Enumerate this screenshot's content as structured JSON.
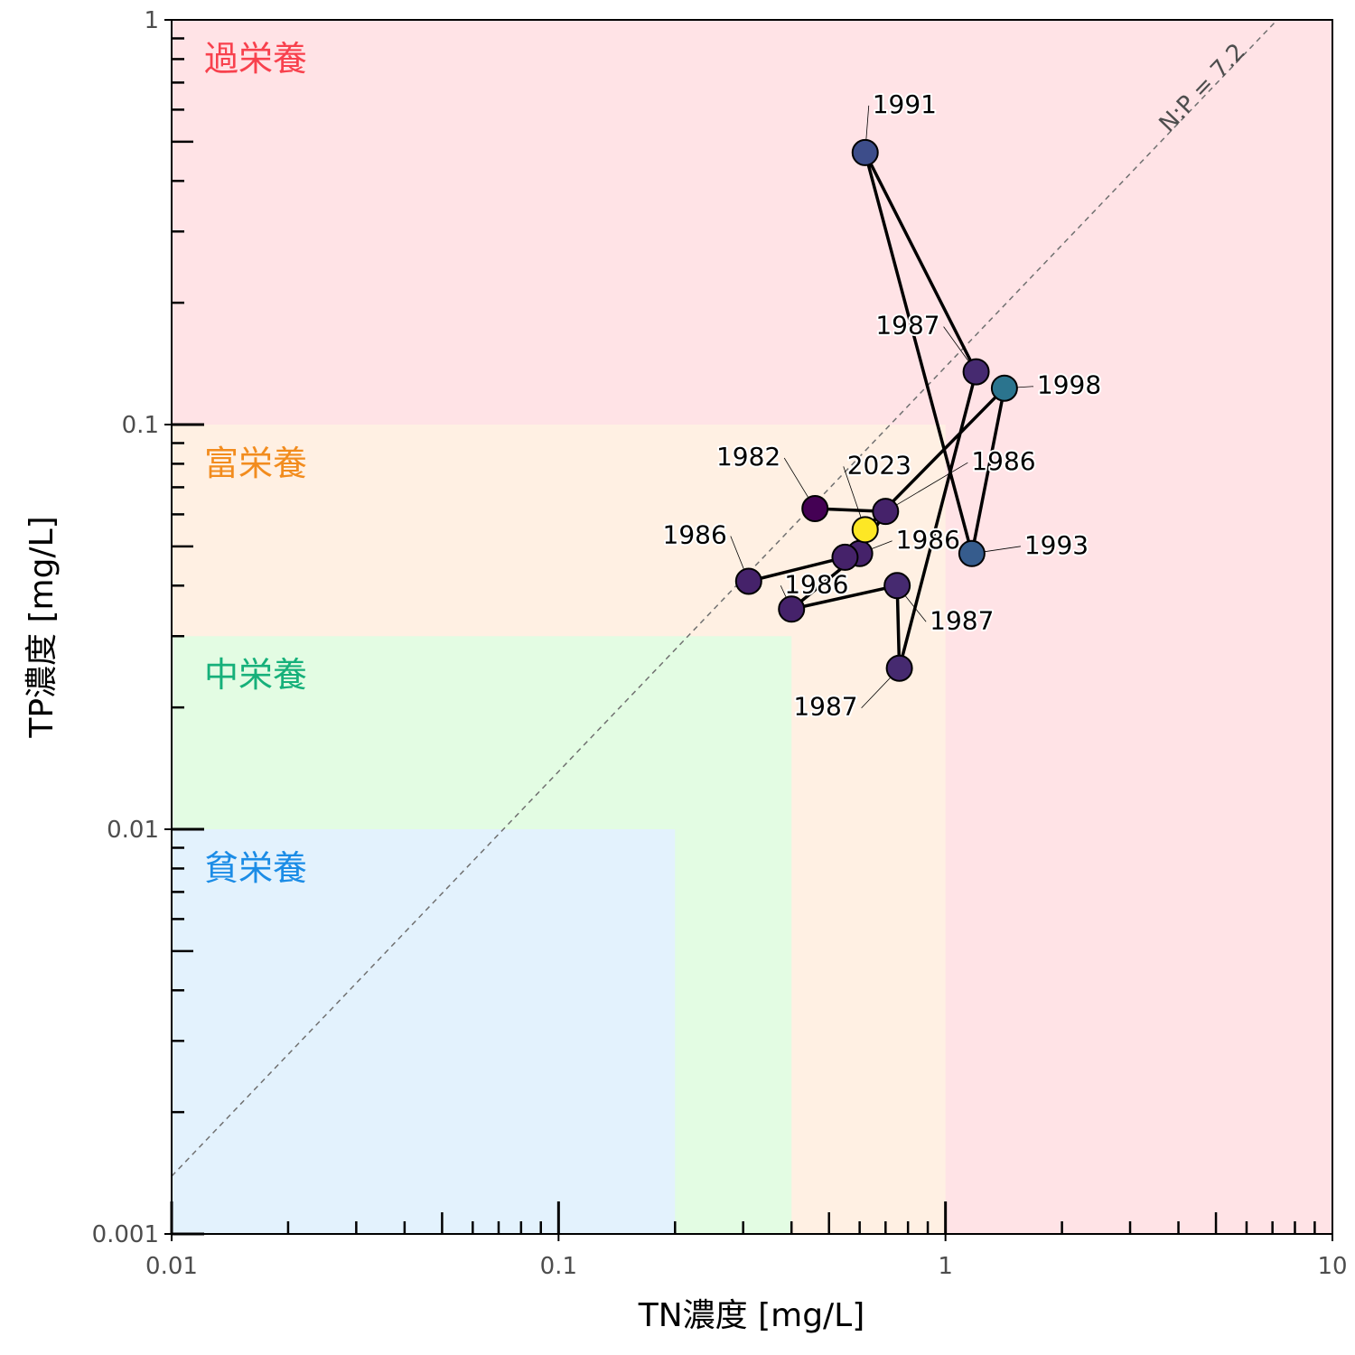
{
  "chart_data": {
    "type": "scatter",
    "xlabel": "TN濃度 [mg/L]",
    "ylabel": "TP濃度 [mg/L]",
    "x_scale": "log",
    "y_scale": "log",
    "xlim": [
      0.01,
      10
    ],
    "ylim": [
      0.001,
      1
    ],
    "x_ticks": [
      {
        "value": 0.01,
        "label": "0.01"
      },
      {
        "value": 0.1,
        "label": "0.1"
      },
      {
        "value": 1,
        "label": "1"
      },
      {
        "value": 10,
        "label": "10"
      }
    ],
    "y_ticks": [
      {
        "value": 0.001,
        "label": "0.001"
      },
      {
        "value": 0.01,
        "label": "0.01"
      },
      {
        "value": 0.1,
        "label": "0.1"
      },
      {
        "value": 1,
        "label": "1"
      }
    ],
    "grid": false,
    "zones": [
      {
        "label": "過栄養",
        "x_max": 10,
        "y_max": 1,
        "color": "#ffe3e6",
        "text_color": "#f8414d"
      },
      {
        "label": "富栄養",
        "x_max": 1,
        "y_max": 0.1,
        "color": "#fff0e3",
        "text_color": "#f28c1e"
      },
      {
        "label": "中栄養",
        "x_max": 0.4,
        "y_max": 0.03,
        "color": "#e3fce3",
        "text_color": "#16b07a"
      },
      {
        "label": "貧栄養",
        "x_max": 0.2,
        "y_max": 0.01,
        "color": "#e3f2fd",
        "text_color": "#1b8ce6"
      }
    ],
    "ratio_line": {
      "label": "N:P = 7.2",
      "ratio": 7.2,
      "color": "#707070"
    },
    "points": [
      {
        "label": "1982",
        "x": 0.46,
        "y": 0.062,
        "color": "#440154"
      },
      {
        "label": "1986",
        "x": 0.7,
        "y": 0.061,
        "color": "#45226a"
      },
      {
        "label": "1986",
        "x": 0.6,
        "y": 0.048,
        "color": "#45226a"
      },
      {
        "label": "1986",
        "x": 0.55,
        "y": 0.047,
        "color": "#45226a"
      },
      {
        "label": "1986",
        "x": 0.31,
        "y": 0.041,
        "color": "#45226a"
      },
      {
        "label": "1986",
        "x": 0.4,
        "y": 0.035,
        "color": "#45226a"
      },
      {
        "label": "1987",
        "x": 0.75,
        "y": 0.04,
        "color": "#462a70"
      },
      {
        "label": "1987",
        "x": 0.76,
        "y": 0.025,
        "color": "#462a70"
      },
      {
        "label": "1987",
        "x": 1.2,
        "y": 0.135,
        "color": "#462a70"
      },
      {
        "label": "1991",
        "x": 0.62,
        "y": 0.47,
        "color": "#3d4d8a"
      },
      {
        "label": "1993",
        "x": 1.17,
        "y": 0.048,
        "color": "#365c8d"
      },
      {
        "label": "1998",
        "x": 1.42,
        "y": 0.123,
        "color": "#2b748e"
      },
      {
        "label": "2023",
        "x": 0.62,
        "y": 0.055,
        "color": "#fde725"
      }
    ],
    "path_order": [
      0,
      1,
      2,
      3,
      4,
      3,
      2,
      5,
      6,
      7,
      8,
      9,
      10,
      11,
      12
    ]
  }
}
